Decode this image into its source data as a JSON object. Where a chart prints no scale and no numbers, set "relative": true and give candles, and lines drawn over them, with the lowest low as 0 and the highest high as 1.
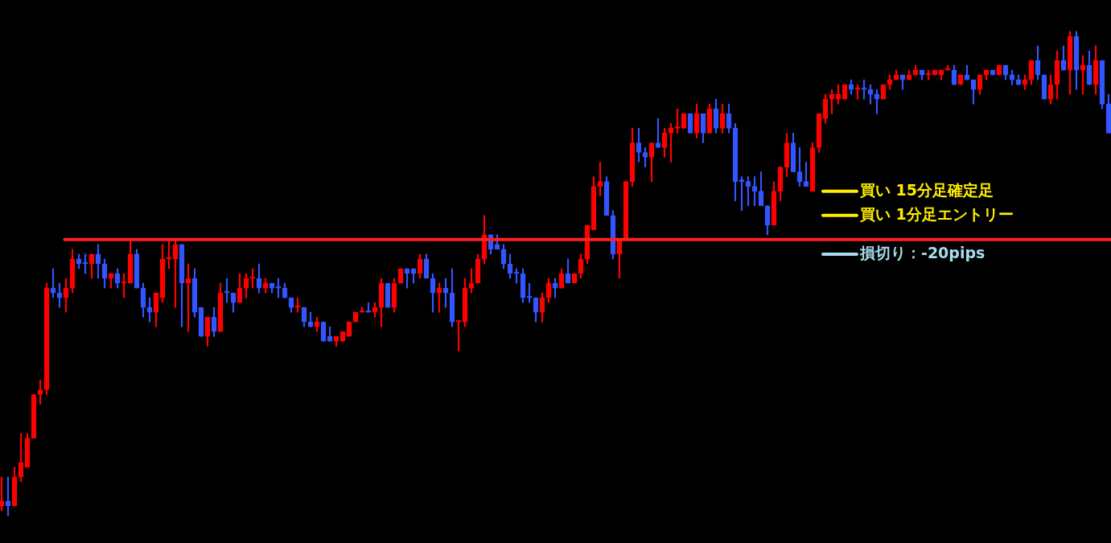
{
  "chart_data": {
    "type": "candlestick",
    "relative": true,
    "categories": [
      null,
      null,
      null,
      null,
      null,
      null,
      null,
      null,
      null,
      null,
      null,
      null,
      null,
      null,
      null,
      null,
      null,
      null,
      null,
      null,
      null,
      null,
      null,
      null,
      null,
      null,
      null,
      null,
      null,
      null,
      null,
      null,
      null,
      null,
      null,
      null,
      null,
      null,
      null,
      null,
      null,
      null,
      null,
      null,
      null,
      null,
      null,
      null,
      null,
      null,
      null,
      null,
      null,
      null,
      null,
      null,
      null,
      null,
      null,
      null,
      null,
      null,
      null,
      null,
      null,
      null,
      null,
      null,
      null,
      null,
      null,
      null,
      null,
      null,
      null,
      null,
      null,
      null,
      null,
      null,
      null,
      null,
      null,
      null,
      null,
      null,
      null,
      null,
      null,
      null,
      null,
      null,
      null,
      null,
      null,
      null,
      null,
      null,
      null,
      null,
      null,
      null,
      null,
      null,
      null,
      null,
      null,
      null,
      null,
      null,
      null,
      null,
      null,
      null,
      null,
      null,
      null,
      null,
      null,
      null,
      null,
      null,
      null,
      null,
      null,
      null,
      null,
      null,
      null,
      null,
      null,
      null,
      null,
      null,
      null,
      null,
      null,
      null,
      null,
      null,
      null,
      null,
      null,
      null,
      null,
      null,
      null,
      null,
      null,
      null,
      null,
      null,
      null,
      null,
      null,
      null,
      null,
      null,
      null,
      null,
      null,
      null,
      null,
      null,
      null,
      null,
      null,
      null,
      null,
      null,
      null,
      null,
      null
    ],
    "colors": [
      "#ff0000",
      "#3355ff",
      "#ff0000",
      "#ff0000",
      "#ff0000",
      "#ff0000",
      "#ff0000",
      "#ff0000",
      "#3355ff",
      "#3355ff",
      "#ff0000",
      "#ff0000",
      "#3355ff",
      "#3355ff",
      "#ff0000",
      "#3355ff",
      "#3355ff",
      "#ff0000",
      "#3355ff",
      "#ff0000",
      "#ff0000",
      "#3355ff",
      "#3355ff",
      "#3355ff",
      "#ff0000",
      "#ff0000",
      "#ff0000",
      "#ff0000",
      "#3355ff",
      "#ff0000",
      "#3355ff",
      "#3355ff",
      "#ff0000",
      "#3355ff",
      "#ff0000",
      "#3355ff",
      "#3355ff",
      "#ff0000",
      "#ff0000",
      "#ff0000",
      "#3355ff",
      "#ff0000",
      "#3355ff",
      "#3355ff",
      "#3355ff",
      "#3355ff",
      "#ff0000",
      "#3355ff",
      "#3355ff",
      "#ff0000",
      "#3355ff",
      "#3355ff",
      "#ff0000",
      "#ff0000",
      "#ff0000",
      "#ff0000",
      "#ff0000",
      "#3355ff",
      "#ff0000",
      "#ff0000",
      "#3355ff",
      "#ff0000",
      "#ff0000",
      "#3355ff",
      "#3355ff",
      "#ff0000",
      "#3355ff",
      "#3355ff",
      "#ff0000",
      "#3355ff",
      "#3355ff",
      "#ff0000",
      "#ff0000",
      "#ff0000",
      "#ff0000",
      "#ff0000",
      "#3355ff",
      "#3355ff",
      "#3355ff",
      "#3355ff",
      "#3355ff",
      "#3355ff",
      "#3355ff",
      "#3355ff",
      "#ff0000",
      "#ff0000",
      "#3355ff",
      "#ff0000",
      "#3355ff",
      "#ff0000",
      "#ff0000",
      "#ff0000",
      "#ff0000",
      "#ff0000",
      "#3355ff",
      "#3355ff",
      "#ff0000",
      "#ff0000",
      "#ff0000",
      "#3355ff",
      "#3355ff",
      "#ff0000",
      "#3355ff",
      "#ff0000",
      "#ff0000",
      "#ff0000",
      "#ff0000",
      "#3355ff",
      "#ff0000",
      "#3355ff",
      "#ff0000",
      "#3355ff",
      "#ff0000",
      "#3355ff",
      "#3355ff",
      "#3355ff",
      "#3355ff",
      "#3355ff",
      "#3355ff",
      "#3355ff",
      "#ff0000",
      "#ff0000",
      "#ff0000",
      "#3355ff",
      "#3355ff",
      "#3355ff",
      "#ff0000",
      "#ff0000",
      "#ff0000",
      "#ff0000",
      "#ff0000",
      "#ff0000",
      "#3355ff",
      "#ff0000",
      "#3355ff",
      "#3355ff",
      "#3355ff",
      "#ff0000",
      "#ff0000",
      "#ff0000",
      "#3355ff",
      "#ff0000",
      "#ff0000",
      "#3355ff",
      "#ff0000",
      "#ff0000",
      "#ff0000",
      "#ff0000",
      "#3355ff",
      "#ff0000",
      "#3355ff",
      "#3355ff",
      "#ff0000",
      "#ff0000",
      "#3355ff",
      "#ff0000",
      "#3355ff",
      "#3355ff",
      "#3355ff",
      "#ff0000",
      "#ff0000",
      "#3355ff",
      "#3355ff",
      "#ff0000",
      "#ff0000",
      "#3355ff",
      "#ff0000",
      "#3355ff",
      "#ff0000",
      "#3355ff",
      "#ff0000",
      "#3355ff",
      "#3355ff"
    ],
    "ohlc": [
      [
        0.02,
        0.08,
        0.01,
        0.03
      ],
      [
        0.03,
        0.08,
        0,
        0.02
      ],
      [
        0.02,
        0.1,
        0.02,
        0.08
      ],
      [
        0.08,
        0.17,
        0.07,
        0.11
      ],
      [
        0.1,
        0.17,
        0.1,
        0.16
      ],
      [
        0.16,
        0.25,
        0.16,
        0.25
      ],
      [
        0.25,
        0.28,
        0.23,
        0.26
      ],
      [
        0.26,
        0.48,
        0.25,
        0.47
      ],
      [
        0.47,
        0.51,
        0.45,
        0.46
      ],
      [
        0.46,
        0.48,
        0.43,
        0.45
      ],
      [
        0.45,
        0.49,
        0.42,
        0.47
      ],
      [
        0.47,
        0.55,
        0.46,
        0.53
      ],
      [
        0.53,
        0.54,
        0.51,
        0.52
      ],
      [
        0.52,
        0.54,
        0.5,
        0.52
      ],
      [
        0.52,
        0.54,
        0.49,
        0.54
      ],
      [
        0.54,
        0.56,
        0.49,
        0.52
      ],
      [
        0.52,
        0.53,
        0.47,
        0.49
      ],
      [
        0.49,
        0.5,
        0.47,
        0.5
      ],
      [
        0.5,
        0.51,
        0.47,
        0.48
      ],
      [
        0.48,
        0.5,
        0.45,
        0.48
      ],
      [
        0.48,
        0.57,
        0.48,
        0.54
      ],
      [
        0.54,
        0.55,
        0.47,
        0.47
      ],
      [
        0.47,
        0.48,
        0.41,
        0.43
      ],
      [
        0.43,
        0.45,
        0.4,
        0.42
      ],
      [
        0.42,
        0.46,
        0.39,
        0.46
      ],
      [
        0.45,
        0.56,
        0.44,
        0.53
      ],
      [
        0.53,
        0.57,
        0.51,
        0.53
      ],
      [
        0.53,
        0.57,
        0.43,
        0.56
      ],
      [
        0.56,
        0.56,
        0.39,
        0.48
      ],
      [
        0.48,
        0.52,
        0.38,
        0.49
      ],
      [
        0.49,
        0.51,
        0.41,
        0.42
      ],
      [
        0.43,
        0.43,
        0.37,
        0.37
      ],
      [
        0.37,
        0.41,
        0.35,
        0.41
      ],
      [
        0.41,
        0.43,
        0.37,
        0.38
      ],
      [
        0.38,
        0.48,
        0.38,
        0.46
      ],
      [
        0.46,
        0.49,
        0.44,
        0.46
      ],
      [
        0.46,
        0.46,
        0.42,
        0.44
      ],
      [
        0.44,
        0.5,
        0.44,
        0.47
      ],
      [
        0.47,
        0.5,
        0.45,
        0.49
      ],
      [
        0.49,
        0.51,
        0.47,
        0.49
      ],
      [
        0.49,
        0.52,
        0.46,
        0.47
      ],
      [
        0.47,
        0.49,
        0.46,
        0.48
      ],
      [
        0.48,
        0.48,
        0.46,
        0.47
      ],
      [
        0.47,
        0.49,
        0.45,
        0.47
      ],
      [
        0.47,
        0.48,
        0.45,
        0.45
      ],
      [
        0.45,
        0.45,
        0.42,
        0.43
      ],
      [
        0.43,
        0.45,
        0.42,
        0.43
      ],
      [
        0.43,
        0.43,
        0.39,
        0.4
      ],
      [
        0.4,
        0.42,
        0.39,
        0.39
      ],
      [
        0.39,
        0.41,
        0.38,
        0.4
      ],
      [
        0.4,
        0.4,
        0.36,
        0.36
      ],
      [
        0.37,
        0.39,
        0.36,
        0.36
      ],
      [
        0.36,
        0.37,
        0.35,
        0.37
      ],
      [
        0.36,
        0.38,
        0.36,
        0.38
      ],
      [
        0.37,
        0.4,
        0.37,
        0.4
      ],
      [
        0.4,
        0.42,
        0.4,
        0.42
      ],
      [
        0.42,
        0.43,
        0.42,
        0.42
      ],
      [
        0.42,
        0.44,
        0.42,
        0.42
      ],
      [
        0.42,
        0.44,
        0.41,
        0.43
      ],
      [
        0.43,
        0.49,
        0.39,
        0.48
      ],
      [
        0.48,
        0.48,
        0.43,
        0.43
      ],
      [
        0.43,
        0.49,
        0.42,
        0.48
      ],
      [
        0.48,
        0.51,
        0.48,
        0.51
      ],
      [
        0.51,
        0.51,
        0.47,
        0.5
      ],
      [
        0.51,
        0.51,
        0.48,
        0.5
      ],
      [
        0.5,
        0.54,
        0.49,
        0.53
      ],
      [
        0.53,
        0.54,
        0.49,
        0.49
      ],
      [
        0.49,
        0.5,
        0.42,
        0.46
      ],
      [
        0.46,
        0.48,
        0.42,
        0.47
      ],
      [
        0.47,
        0.49,
        0.43,
        0.46
      ],
      [
        0.46,
        0.51,
        0.39,
        0.4
      ],
      [
        0.4,
        0.4,
        0.34,
        0.4
      ],
      [
        0.4,
        0.49,
        0.39,
        0.47
      ],
      [
        0.47,
        0.51,
        0.46,
        0.48
      ],
      [
        0.48,
        0.54,
        0.48,
        0.53
      ],
      [
        0.53,
        0.62,
        0.52,
        0.58
      ],
      [
        0.58,
        0.58,
        0.54,
        0.55
      ],
      [
        0.56,
        0.58,
        0.55,
        0.55
      ],
      [
        0.55,
        0.56,
        0.51,
        0.52
      ],
      [
        0.52,
        0.54,
        0.49,
        0.5
      ],
      [
        0.5,
        0.51,
        0.48,
        0.5
      ],
      [
        0.5,
        0.51,
        0.44,
        0.45
      ],
      [
        0.45,
        0.48,
        0.44,
        0.45
      ],
      [
        0.45,
        0.45,
        0.4,
        0.42
      ],
      [
        0.42,
        0.46,
        0.4,
        0.45
      ],
      [
        0.45,
        0.49,
        0.44,
        0.48
      ],
      [
        0.48,
        0.49,
        0.45,
        0.47
      ],
      [
        0.47,
        0.51,
        0.47,
        0.5
      ],
      [
        0.5,
        0.53,
        0.48,
        0.48
      ],
      [
        0.48,
        0.5,
        0.48,
        0.5
      ],
      [
        0.5,
        0.54,
        0.49,
        0.53
      ],
      [
        0.53,
        0.6,
        0.52,
        0.6
      ],
      [
        0.59,
        0.7,
        0.59,
        0.68
      ],
      [
        0.68,
        0.73,
        0.66,
        0.69
      ],
      [
        0.69,
        0.7,
        0.62,
        0.62
      ],
      [
        0.62,
        0.63,
        0.53,
        0.54
      ],
      [
        0.54,
        0.57,
        0.49,
        0.57
      ],
      [
        0.57,
        0.69,
        0.57,
        0.69
      ],
      [
        0.69,
        0.8,
        0.68,
        0.77
      ],
      [
        0.77,
        0.8,
        0.73,
        0.75
      ],
      [
        0.75,
        0.76,
        0.72,
        0.74
      ],
      [
        0.74,
        0.77,
        0.69,
        0.77
      ],
      [
        0.77,
        0.82,
        0.76,
        0.76
      ],
      [
        0.76,
        0.8,
        0.74,
        0.79
      ],
      [
        0.79,
        0.81,
        0.73,
        0.8
      ],
      [
        0.8,
        0.84,
        0.79,
        0.8
      ],
      [
        0.8,
        0.83,
        0.8,
        0.83
      ],
      [
        0.83,
        0.83,
        0.79,
        0.79
      ],
      [
        0.79,
        0.85,
        0.78,
        0.83
      ],
      [
        0.83,
        0.83,
        0.77,
        0.79
      ],
      [
        0.79,
        0.85,
        0.79,
        0.84
      ],
      [
        0.84,
        0.86,
        0.79,
        0.8
      ],
      [
        0.8,
        0.85,
        0.79,
        0.83
      ],
      [
        0.83,
        0.85,
        0.79,
        0.8
      ],
      [
        0.8,
        0.81,
        0.65,
        0.69
      ],
      [
        0.69,
        0.7,
        0.63,
        0.69
      ],
      [
        0.69,
        0.7,
        0.64,
        0.68
      ],
      [
        0.68,
        0.7,
        0.64,
        0.67
      ],
      [
        0.67,
        0.71,
        0.64,
        0.64
      ],
      [
        0.64,
        0.64,
        0.58,
        0.6
      ],
      [
        0.6,
        0.69,
        0.6,
        0.67
      ],
      [
        0.67,
        0.72,
        0.65,
        0.72
      ],
      [
        0.72,
        0.79,
        0.7,
        0.77
      ],
      [
        0.77,
        0.79,
        0.71,
        0.71
      ],
      [
        0.71,
        0.76,
        0.68,
        0.69
      ],
      [
        0.69,
        0.73,
        0.68,
        0.68
      ],
      [
        0.67,
        0.77,
        0.67,
        0.76
      ],
      [
        0.76,
        0.83,
        0.75,
        0.83
      ],
      [
        0.82,
        0.87,
        0.81,
        0.86
      ],
      [
        0.86,
        0.88,
        0.83,
        0.87
      ],
      [
        0.86,
        0.89,
        0.85,
        0.87
      ],
      [
        0.86,
        0.89,
        0.86,
        0.89
      ],
      [
        0.89,
        0.9,
        0.87,
        0.88
      ],
      [
        0.88,
        0.89,
        0.86,
        0.88
      ],
      [
        0.88,
        0.9,
        0.86,
        0.88
      ],
      [
        0.88,
        0.89,
        0.85,
        0.87
      ],
      [
        0.87,
        0.88,
        0.83,
        0.86
      ],
      [
        0.86,
        0.89,
        0.86,
        0.89
      ],
      [
        0.89,
        0.91,
        0.88,
        0.9
      ],
      [
        0.9,
        0.92,
        0.9,
        0.91
      ],
      [
        0.91,
        0.91,
        0.88,
        0.9
      ],
      [
        0.9,
        0.92,
        0.9,
        0.91
      ],
      [
        0.91,
        0.93,
        0.91,
        0.92
      ],
      [
        0.92,
        0.92,
        0.9,
        0.91
      ],
      [
        0.91,
        0.92,
        0.9,
        0.91
      ],
      [
        0.91,
        0.92,
        0.91,
        0.92
      ],
      [
        0.91,
        0.92,
        0.9,
        0.92
      ],
      [
        0.92,
        0.93,
        0.92,
        0.92
      ],
      [
        0.92,
        0.93,
        0.89,
        0.89
      ],
      [
        0.89,
        0.91,
        0.89,
        0.91
      ],
      [
        0.91,
        0.93,
        0.9,
        0.9
      ],
      [
        0.9,
        0.9,
        0.85,
        0.88
      ],
      [
        0.88,
        0.91,
        0.87,
        0.91
      ],
      [
        0.91,
        0.92,
        0.9,
        0.92
      ],
      [
        0.92,
        0.92,
        0.91,
        0.91
      ],
      [
        0.91,
        0.93,
        0.91,
        0.93
      ],
      [
        0.93,
        0.93,
        0.9,
        0.91
      ],
      [
        0.91,
        0.92,
        0.89,
        0.9
      ],
      [
        0.9,
        0.91,
        0.89,
        0.89
      ],
      [
        0.89,
        0.91,
        0.88,
        0.9
      ],
      [
        0.9,
        0.94,
        0.89,
        0.94
      ],
      [
        0.94,
        0.97,
        0.9,
        0.91
      ],
      [
        0.91,
        0.91,
        0.86,
        0.86
      ],
      [
        0.86,
        0.91,
        0.85,
        0.89
      ],
      [
        0.89,
        0.96,
        0.86,
        0.94
      ],
      [
        0.94,
        0.97,
        0.92,
        0.92
      ],
      [
        0.92,
        1.0,
        0.87,
        0.99
      ],
      [
        0.99,
        1.0,
        0.88,
        0.92
      ],
      [
        0.92,
        0.95,
        0.87,
        0.93
      ],
      [
        0.93,
        0.96,
        0.89,
        0.89
      ],
      [
        0.89,
        0.97,
        0.87,
        0.94
      ],
      [
        0.94,
        0.94,
        0.84,
        0.85
      ],
      [
        0.85,
        0.87,
        0.79,
        0.79
      ]
    ],
    "ref_lines": [
      {
        "axis": "y",
        "value": 0.57,
        "color": "#ff2020"
      },
      {
        "axis": "y",
        "value": 0.67,
        "label": "買い 15分足確定足",
        "color": "#ffee00"
      },
      {
        "axis": "y",
        "value": 0.62,
        "label": "買い 1分足エントリー",
        "color": "#ffee00"
      },
      {
        "axis": "y",
        "value": 0.54,
        "label": "損切り：-20pips",
        "color": "#a8dcec"
      }
    ]
  }
}
